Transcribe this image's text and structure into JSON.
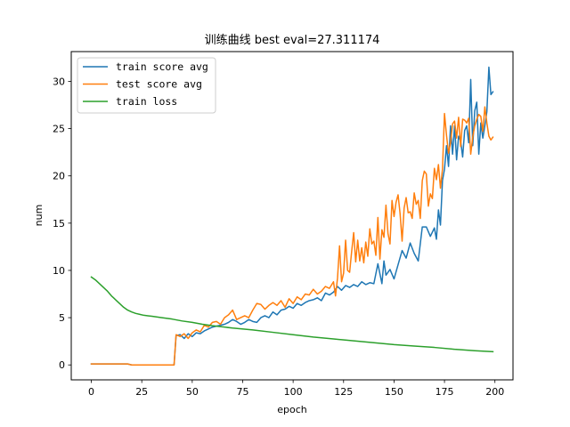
{
  "chart_data": {
    "type": "line",
    "title": "训练曲线 best eval=27.311174",
    "xlabel": "epoch",
    "ylabel": "num",
    "xlim": [
      -9.95,
      208.95
    ],
    "ylim": [
      -1.58,
      33.15
    ],
    "xticks": [
      0,
      25,
      50,
      75,
      100,
      125,
      150,
      175,
      200
    ],
    "yticks": [
      0,
      5,
      10,
      15,
      20,
      25,
      30
    ],
    "grid": false,
    "legend_position": "top-left",
    "series": [
      {
        "name": "train score avg",
        "color": "#1f77b4",
        "x": [
          0,
          10,
          18,
          20,
          30,
          38,
          41,
          42,
          44,
          46,
          48,
          50,
          52,
          54,
          56,
          58,
          60,
          62,
          64,
          66,
          68,
          70,
          72,
          74,
          76,
          78,
          80,
          82,
          84,
          86,
          88,
          90,
          92,
          94,
          96,
          98,
          100,
          102,
          104,
          106,
          108,
          110,
          112,
          114,
          116,
          118,
          120,
          122,
          124,
          126,
          128,
          130,
          132,
          134,
          136,
          138,
          140,
          142,
          144,
          145,
          146,
          148,
          150,
          152,
          154,
          156,
          158,
          160,
          162,
          164,
          166,
          168,
          170,
          171,
          172,
          173,
          174,
          175,
          176,
          177,
          178,
          179,
          180,
          181,
          182,
          183,
          184,
          185,
          186,
          187,
          188,
          189,
          190,
          191,
          192,
          193,
          194,
          195,
          196,
          197,
          198,
          199
        ],
        "y": [
          0.1,
          0.1,
          0.1,
          0.0,
          0.0,
          0.0,
          0.0,
          3.1,
          3.2,
          2.8,
          3.3,
          3.0,
          3.4,
          3.3,
          3.6,
          3.8,
          4.0,
          4.1,
          4.2,
          4.3,
          4.5,
          4.8,
          4.6,
          4.3,
          4.5,
          4.8,
          4.6,
          4.5,
          5.0,
          5.2,
          5.0,
          5.6,
          5.3,
          5.8,
          5.9,
          6.2,
          6.0,
          6.5,
          6.3,
          6.6,
          6.8,
          6.9,
          7.1,
          6.8,
          7.6,
          7.4,
          7.7,
          8.3,
          7.9,
          8.4,
          8.2,
          8.5,
          8.3,
          8.8,
          8.5,
          8.7,
          8.6,
          10.7,
          8.6,
          11.0,
          9.5,
          10.1,
          9.1,
          10.6,
          12.1,
          11.3,
          12.9,
          11.8,
          11.0,
          14.6,
          14.6,
          13.6,
          14.5,
          13.3,
          16.4,
          14.8,
          19.5,
          20.7,
          23.2,
          21.0,
          25.3,
          22.3,
          25.3,
          21.7,
          24.2,
          23.7,
          22.0,
          24.8,
          25.3,
          23.5,
          30.2,
          23.2,
          26.9,
          27.8,
          22.3,
          25.6,
          24.0,
          25.3,
          26.8,
          31.5,
          28.6,
          28.9
        ]
      },
      {
        "name": "test score avg",
        "color": "#ff7f0e",
        "x": [
          0,
          10,
          18,
          20,
          30,
          38,
          41,
          42,
          44,
          46,
          48,
          50,
          52,
          54,
          56,
          58,
          60,
          62,
          64,
          66,
          68,
          70,
          72,
          74,
          76,
          78,
          80,
          82,
          84,
          86,
          88,
          90,
          92,
          94,
          96,
          98,
          100,
          102,
          104,
          106,
          108,
          110,
          112,
          114,
          116,
          118,
          120,
          121,
          122,
          123,
          124,
          125,
          126,
          127,
          128,
          129,
          130,
          131,
          132,
          133,
          134,
          135,
          136,
          137,
          138,
          139,
          140,
          141,
          142,
          143,
          144,
          145,
          146,
          147,
          148,
          149,
          150,
          151,
          152,
          153,
          154,
          155,
          156,
          157,
          158,
          159,
          160,
          161,
          162,
          163,
          164,
          165,
          166,
          167,
          168,
          169,
          170,
          171,
          172,
          173,
          174,
          175,
          176,
          177,
          178,
          179,
          180,
          181,
          182,
          183,
          184,
          185,
          186,
          187,
          188,
          189,
          190,
          191,
          192,
          193,
          194,
          195,
          196,
          197,
          198,
          199
        ],
        "y": [
          0.1,
          0.1,
          0.1,
          0.0,
          0.0,
          0.0,
          0.0,
          3.2,
          3.0,
          3.3,
          2.8,
          3.4,
          3.7,
          3.5,
          4.2,
          4.0,
          4.5,
          4.6,
          4.3,
          5.0,
          5.3,
          5.8,
          4.8,
          5.0,
          5.2,
          5.0,
          5.8,
          6.5,
          6.4,
          5.9,
          6.3,
          6.6,
          6.3,
          6.8,
          6.1,
          7.0,
          6.5,
          7.2,
          6.9,
          7.5,
          7.4,
          8.0,
          7.5,
          7.8,
          8.3,
          8.1,
          8.8,
          7.3,
          9.2,
          12.6,
          8.8,
          9.7,
          13.2,
          10.0,
          9.8,
          12.0,
          14.0,
          10.9,
          13.2,
          11.0,
          12.4,
          10.8,
          13.0,
          11.5,
          14.4,
          12.8,
          13.1,
          11.6,
          15.6,
          11.2,
          14.3,
          13.5,
          16.9,
          13.9,
          12.8,
          17.4,
          15.7,
          17.2,
          18.0,
          16.0,
          13.1,
          16.6,
          17.7,
          16.1,
          16.2,
          15.5,
          18.2,
          17.0,
          17.4,
          15.5,
          19.5,
          20.5,
          20.2,
          16.8,
          18.1,
          17.6,
          20.8,
          19.6,
          21.2,
          18.7,
          20.7,
          26.6,
          24.3,
          22.4,
          23.5,
          25.5,
          25.8,
          24.0,
          26.2,
          23.1,
          26.0,
          25.9,
          25.6,
          26.1,
          22.3,
          24.1,
          25.3,
          26.0,
          26.5,
          26.3,
          24.7,
          27.3,
          25.6,
          24.2,
          23.8,
          24.1
        ]
      },
      {
        "name": "train loss",
        "color": "#2ca02c",
        "x": [
          0,
          2,
          4,
          6,
          8,
          10,
          12,
          14,
          16,
          18,
          20,
          22,
          24,
          26,
          28,
          30,
          35,
          40,
          45,
          50,
          55,
          60,
          70,
          80,
          90,
          100,
          110,
          120,
          130,
          140,
          150,
          160,
          170,
          180,
          190,
          199
        ],
        "y": [
          9.3,
          9.0,
          8.6,
          8.2,
          7.8,
          7.3,
          6.9,
          6.5,
          6.1,
          5.8,
          5.6,
          5.45,
          5.35,
          5.25,
          5.2,
          5.15,
          5.0,
          4.85,
          4.65,
          4.5,
          4.3,
          4.15,
          3.9,
          3.7,
          3.45,
          3.2,
          2.95,
          2.75,
          2.55,
          2.35,
          2.15,
          2.0,
          1.85,
          1.65,
          1.5,
          1.4
        ]
      }
    ]
  }
}
